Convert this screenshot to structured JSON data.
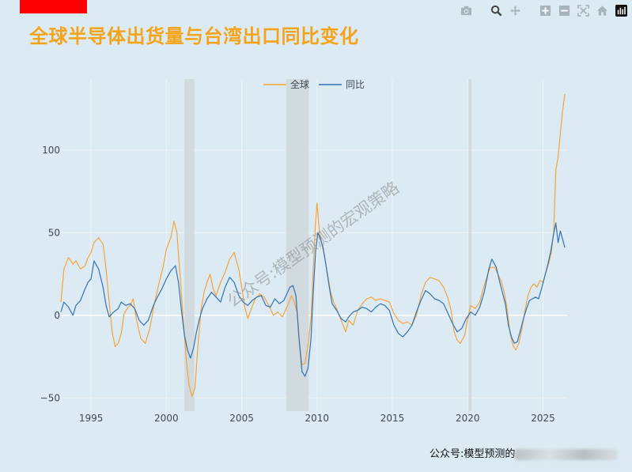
{
  "title": "全球半导体出货量与台湾出口同比变化",
  "watermark": "公众号:模型预测的宏观策略",
  "footer": {
    "text": "公众号:模型预测的"
  },
  "modebar": [
    "camera-icon",
    "zoom-icon",
    "pan-icon",
    "zoom-in-icon",
    "zoom-out-icon",
    "autoscale-icon",
    "reset-axes-icon",
    "plotly-logo-icon"
  ],
  "colors": {
    "background": "#dcebf3",
    "title": "#f5a31a",
    "global": "#f7a33c",
    "yoy": "#3272b8",
    "shade": "#cfd8dc"
  },
  "chart_data": {
    "type": "line",
    "title": "全球半导体出货量与台湾出口同比变化",
    "xlabel": "",
    "ylabel": "",
    "xlim": [
      1993.0,
      2026.6
    ],
    "ylim": [
      -58,
      143
    ],
    "x_ticks": [
      1995,
      2000,
      2005,
      2010,
      2015,
      2020,
      2025
    ],
    "x_tick_labels": [
      "1995",
      "2000",
      "2005",
      "2010",
      "2015",
      "2020",
      "2025"
    ],
    "y_ticks": [
      -50,
      0,
      50,
      100
    ],
    "y_tick_labels": [
      "−50",
      "0",
      "50",
      "100"
    ],
    "grid": true,
    "legend": "top-center",
    "recession_shading": [
      [
        2001.2,
        2001.85
      ],
      [
        2007.95,
        2009.45
      ],
      [
        2020.05,
        2020.25
      ]
    ],
    "series": [
      {
        "name": "全球",
        "color": "#f7a33c",
        "points": [
          [
            1993.0,
            8
          ],
          [
            1993.2,
            28
          ],
          [
            1993.5,
            35
          ],
          [
            1993.8,
            31
          ],
          [
            1994.0,
            33
          ],
          [
            1994.3,
            28
          ],
          [
            1994.6,
            30
          ],
          [
            1994.8,
            35
          ],
          [
            1995.0,
            38
          ],
          [
            1995.2,
            44
          ],
          [
            1995.5,
            47
          ],
          [
            1995.8,
            43
          ],
          [
            1996.0,
            28
          ],
          [
            1996.2,
            8
          ],
          [
            1996.4,
            -10
          ],
          [
            1996.6,
            -19
          ],
          [
            1996.8,
            -17
          ],
          [
            1997.0,
            -11
          ],
          [
            1997.2,
            1
          ],
          [
            1997.4,
            4
          ],
          [
            1997.6,
            6
          ],
          [
            1997.8,
            10
          ],
          [
            1998.0,
            -2
          ],
          [
            1998.3,
            -14
          ],
          [
            1998.6,
            -17
          ],
          [
            1998.9,
            -8
          ],
          [
            1999.2,
            7
          ],
          [
            1999.5,
            19
          ],
          [
            1999.8,
            30
          ],
          [
            2000.0,
            40
          ],
          [
            2000.3,
            47
          ],
          [
            2000.5,
            57
          ],
          [
            2000.7,
            50
          ],
          [
            2000.9,
            25
          ],
          [
            2001.1,
            0
          ],
          [
            2001.3,
            -25
          ],
          [
            2001.5,
            -42
          ],
          [
            2001.7,
            -49
          ],
          [
            2001.9,
            -44
          ],
          [
            2002.1,
            -18
          ],
          [
            2002.3,
            3
          ],
          [
            2002.5,
            14
          ],
          [
            2002.7,
            20
          ],
          [
            2002.9,
            25
          ],
          [
            2003.1,
            16
          ],
          [
            2003.3,
            12
          ],
          [
            2003.6,
            20
          ],
          [
            2003.9,
            26
          ],
          [
            2004.2,
            34
          ],
          [
            2004.5,
            38
          ],
          [
            2004.8,
            28
          ],
          [
            2005.0,
            17
          ],
          [
            2005.2,
            5
          ],
          [
            2005.4,
            -2
          ],
          [
            2005.6,
            3
          ],
          [
            2005.9,
            10
          ],
          [
            2006.2,
            13
          ],
          [
            2006.5,
            11
          ],
          [
            2006.8,
            6
          ],
          [
            2007.1,
            0
          ],
          [
            2007.4,
            2
          ],
          [
            2007.7,
            -1
          ],
          [
            2007.9,
            3
          ],
          [
            2008.1,
            7
          ],
          [
            2008.3,
            12
          ],
          [
            2008.5,
            8
          ],
          [
            2008.7,
            1
          ],
          [
            2008.85,
            -18
          ],
          [
            2009.0,
            -30
          ],
          [
            2009.2,
            -29
          ],
          [
            2009.4,
            -18
          ],
          [
            2009.6,
            -2
          ],
          [
            2009.75,
            28
          ],
          [
            2009.9,
            56
          ],
          [
            2010.0,
            68
          ],
          [
            2010.15,
            51
          ],
          [
            2010.3,
            44
          ],
          [
            2010.5,
            36
          ],
          [
            2010.7,
            25
          ],
          [
            2010.9,
            14
          ],
          [
            2011.1,
            8
          ],
          [
            2011.3,
            4
          ],
          [
            2011.6,
            -3
          ],
          [
            2011.9,
            -10
          ],
          [
            2012.1,
            -3
          ],
          [
            2012.4,
            -6
          ],
          [
            2012.7,
            3
          ],
          [
            2013.0,
            7
          ],
          [
            2013.3,
            10
          ],
          [
            2013.6,
            11
          ],
          [
            2013.9,
            9
          ],
          [
            2014.2,
            10
          ],
          [
            2014.5,
            9
          ],
          [
            2014.8,
            8
          ],
          [
            2015.1,
            1
          ],
          [
            2015.4,
            -3
          ],
          [
            2015.7,
            -5
          ],
          [
            2016.0,
            -4
          ],
          [
            2016.3,
            -6
          ],
          [
            2016.6,
            0
          ],
          [
            2016.9,
            12
          ],
          [
            2017.2,
            20
          ],
          [
            2017.5,
            23
          ],
          [
            2017.8,
            22
          ],
          [
            2018.1,
            21
          ],
          [
            2018.4,
            17
          ],
          [
            2018.7,
            10
          ],
          [
            2018.9,
            3
          ],
          [
            2019.1,
            -10
          ],
          [
            2019.3,
            -15
          ],
          [
            2019.5,
            -17
          ],
          [
            2019.8,
            -12
          ],
          [
            2020.0,
            -2
          ],
          [
            2020.2,
            6
          ],
          [
            2020.5,
            4
          ],
          [
            2020.8,
            8
          ],
          [
            2021.0,
            15
          ],
          [
            2021.3,
            24
          ],
          [
            2021.5,
            29
          ],
          [
            2021.8,
            29
          ],
          [
            2022.0,
            25
          ],
          [
            2022.2,
            21
          ],
          [
            2022.4,
            15
          ],
          [
            2022.6,
            5
          ],
          [
            2022.8,
            -10
          ],
          [
            2023.0,
            -18
          ],
          [
            2023.2,
            -21
          ],
          [
            2023.4,
            -17
          ],
          [
            2023.6,
            -8
          ],
          [
            2023.8,
            3
          ],
          [
            2024.0,
            12
          ],
          [
            2024.2,
            17
          ],
          [
            2024.4,
            19
          ],
          [
            2024.6,
            17
          ],
          [
            2024.8,
            21
          ],
          [
            2025.0,
            20
          ],
          [
            2025.2,
            26
          ],
          [
            2025.4,
            32
          ],
          [
            2025.55,
            38
          ],
          [
            2025.7,
            50
          ],
          [
            2025.85,
            88
          ],
          [
            2026.0,
            96
          ],
          [
            2026.15,
            110
          ],
          [
            2026.3,
            124
          ],
          [
            2026.45,
            134
          ]
        ]
      },
      {
        "name": "同比",
        "color": "#3272b8",
        "points": [
          [
            1993.0,
            2
          ],
          [
            1993.2,
            8
          ],
          [
            1993.5,
            5
          ],
          [
            1993.8,
            0
          ],
          [
            1994.0,
            6
          ],
          [
            1994.3,
            9
          ],
          [
            1994.6,
            16
          ],
          [
            1994.8,
            20
          ],
          [
            1995.0,
            22
          ],
          [
            1995.2,
            33
          ],
          [
            1995.5,
            28
          ],
          [
            1995.8,
            17
          ],
          [
            1996.0,
            6
          ],
          [
            1996.2,
            -1
          ],
          [
            1996.5,
            2
          ],
          [
            1996.8,
            4
          ],
          [
            1997.0,
            8
          ],
          [
            1997.3,
            6
          ],
          [
            1997.6,
            7
          ],
          [
            1997.9,
            4
          ],
          [
            1998.2,
            -3
          ],
          [
            1998.5,
            -6
          ],
          [
            1998.8,
            -3
          ],
          [
            1999.1,
            5
          ],
          [
            1999.4,
            11
          ],
          [
            1999.7,
            16
          ],
          [
            2000.0,
            22
          ],
          [
            2000.3,
            27
          ],
          [
            2000.6,
            30
          ],
          [
            2000.8,
            20
          ],
          [
            2001.0,
            3
          ],
          [
            2001.2,
            -12
          ],
          [
            2001.4,
            -21
          ],
          [
            2001.6,
            -26
          ],
          [
            2001.8,
            -20
          ],
          [
            2002.0,
            -10
          ],
          [
            2002.2,
            -2
          ],
          [
            2002.4,
            4
          ],
          [
            2002.7,
            10
          ],
          [
            2003.0,
            14
          ],
          [
            2003.3,
            11
          ],
          [
            2003.6,
            8
          ],
          [
            2003.9,
            17
          ],
          [
            2004.2,
            23
          ],
          [
            2004.5,
            20
          ],
          [
            2004.8,
            12
          ],
          [
            2005.1,
            8
          ],
          [
            2005.4,
            6
          ],
          [
            2005.7,
            9
          ],
          [
            2006.0,
            11
          ],
          [
            2006.3,
            12
          ],
          [
            2006.6,
            6
          ],
          [
            2006.9,
            5
          ],
          [
            2007.2,
            10
          ],
          [
            2007.5,
            7
          ],
          [
            2007.8,
            9
          ],
          [
            2008.0,
            13
          ],
          [
            2008.2,
            17
          ],
          [
            2008.4,
            18
          ],
          [
            2008.6,
            12
          ],
          [
            2008.8,
            -14
          ],
          [
            2009.0,
            -34
          ],
          [
            2009.2,
            -37
          ],
          [
            2009.4,
            -32
          ],
          [
            2009.6,
            -14
          ],
          [
            2009.75,
            14
          ],
          [
            2009.9,
            38
          ],
          [
            2010.05,
            50
          ],
          [
            2010.2,
            47
          ],
          [
            2010.4,
            41
          ],
          [
            2010.6,
            30
          ],
          [
            2010.8,
            18
          ],
          [
            2011.0,
            7
          ],
          [
            2011.3,
            3
          ],
          [
            2011.6,
            -2
          ],
          [
            2011.9,
            -4
          ],
          [
            2012.1,
            -1
          ],
          [
            2012.4,
            2
          ],
          [
            2012.7,
            3
          ],
          [
            2013.0,
            5
          ],
          [
            2013.3,
            4
          ],
          [
            2013.6,
            2
          ],
          [
            2013.9,
            5
          ],
          [
            2014.2,
            7
          ],
          [
            2014.5,
            6
          ],
          [
            2014.8,
            3
          ],
          [
            2015.1,
            -6
          ],
          [
            2015.4,
            -11
          ],
          [
            2015.7,
            -13
          ],
          [
            2016.0,
            -10
          ],
          [
            2016.3,
            -6
          ],
          [
            2016.6,
            2
          ],
          [
            2016.9,
            9
          ],
          [
            2017.2,
            15
          ],
          [
            2017.5,
            13
          ],
          [
            2017.8,
            10
          ],
          [
            2018.1,
            9
          ],
          [
            2018.4,
            7
          ],
          [
            2018.7,
            1
          ],
          [
            2019.0,
            -5
          ],
          [
            2019.3,
            -10
          ],
          [
            2019.6,
            -8
          ],
          [
            2019.9,
            -2
          ],
          [
            2020.2,
            2
          ],
          [
            2020.5,
            0
          ],
          [
            2020.8,
            5
          ],
          [
            2021.1,
            14
          ],
          [
            2021.4,
            28
          ],
          [
            2021.6,
            34
          ],
          [
            2021.9,
            29
          ],
          [
            2022.1,
            21
          ],
          [
            2022.3,
            14
          ],
          [
            2022.5,
            7
          ],
          [
            2022.7,
            -6
          ],
          [
            2022.9,
            -13
          ],
          [
            2023.1,
            -17
          ],
          [
            2023.3,
            -16
          ],
          [
            2023.5,
            -9
          ],
          [
            2023.7,
            -2
          ],
          [
            2023.9,
            4
          ],
          [
            2024.1,
            9
          ],
          [
            2024.3,
            10
          ],
          [
            2024.5,
            11
          ],
          [
            2024.7,
            10
          ],
          [
            2024.9,
            16
          ],
          [
            2025.1,
            23
          ],
          [
            2025.3,
            30
          ],
          [
            2025.5,
            38
          ],
          [
            2025.7,
            49
          ],
          [
            2025.85,
            56
          ],
          [
            2026.0,
            44
          ],
          [
            2026.15,
            51
          ],
          [
            2026.3,
            46
          ],
          [
            2026.45,
            41
          ]
        ]
      }
    ]
  }
}
